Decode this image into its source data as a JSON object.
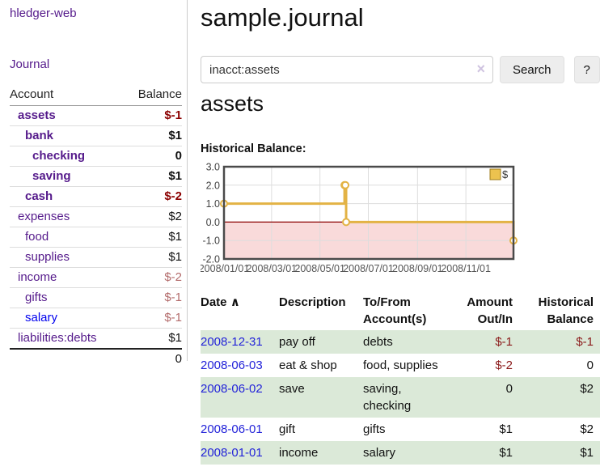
{
  "app": {
    "brand": "hledger-web",
    "nav": {
      "journal": "Journal"
    }
  },
  "sidebar": {
    "columns": {
      "account": "Account",
      "balance": "Balance"
    },
    "accounts": [
      {
        "name": "assets",
        "depth": 1,
        "balance": "$-1"
      },
      {
        "name": "bank",
        "depth": 2,
        "balance": "$1"
      },
      {
        "name": "checking",
        "depth": 3,
        "balance": "0"
      },
      {
        "name": "saving",
        "depth": 3,
        "balance": "$1"
      },
      {
        "name": "cash",
        "depth": 2,
        "balance": "$-2"
      },
      {
        "name": "expenses",
        "depth": 1,
        "balance": "$2"
      },
      {
        "name": "food",
        "depth": 2,
        "balance": "$1"
      },
      {
        "name": "supplies",
        "depth": 2,
        "balance": "$1"
      },
      {
        "name": "income",
        "depth": 1,
        "balance": "$-2"
      },
      {
        "name": "gifts",
        "depth": 2,
        "balance": "$-1"
      },
      {
        "name": "salary",
        "depth": 2,
        "balance": "$-1"
      },
      {
        "name": "liabilities:debts",
        "depth": 1,
        "balance": "$1"
      }
    ],
    "total": "0"
  },
  "main": {
    "title": "sample.journal",
    "search": {
      "value": "inacct:assets",
      "clear_icon": "×",
      "search_button": "Search",
      "help_button": "?"
    },
    "section_title": "assets",
    "chart_label": "Historical Balance:"
  },
  "chart_data": {
    "type": "line",
    "title": "Historical Balance",
    "step": true,
    "series": [
      {
        "name": "$",
        "color": "#e3b345",
        "points": [
          [
            "2008-01-01",
            1
          ],
          [
            "2008-06-01",
            2
          ],
          [
            "2008-06-02",
            2
          ],
          [
            "2008-06-03",
            0
          ],
          [
            "2008-12-31",
            -1
          ]
        ]
      }
    ],
    "x_range": [
      "2008-01-01",
      "2008-12-31"
    ],
    "x_ticks": [
      "2008/01/01",
      "2008/03/01",
      "2008/05/01",
      "2008/07/01",
      "2008/09/01",
      "2008/11/01"
    ],
    "y_ticks": [
      3.0,
      2.0,
      1.0,
      0.0,
      -1.0,
      -2.0
    ],
    "ylim": [
      -2,
      3
    ],
    "grid": true,
    "legend": {
      "label": "$",
      "position": "top-right"
    },
    "colors": {
      "negative_region": "#f9dada",
      "zero_line": "#8b0000",
      "grid": "#dddddd",
      "border": "#4a4a4a",
      "tick_text": "#555555",
      "legend_fill": "#ecc24f",
      "legend_stroke": "#a07d1c"
    }
  },
  "register": {
    "headers": {
      "date": "Date",
      "sort_icon": "∧",
      "description": "Description",
      "accounts": "To/From Account(s)",
      "amount": "Amount Out/In",
      "balance": "Historical Balance"
    },
    "rows": [
      {
        "date": "2008-12-31",
        "description": "pay off",
        "accounts": "debts",
        "amount": "$-1",
        "balance": "$-1"
      },
      {
        "date": "2008-06-03",
        "description": "eat & shop",
        "accounts": "food, supplies",
        "amount": "$-2",
        "balance": "0"
      },
      {
        "date": "2008-06-02",
        "description": "save",
        "accounts": "saving, checking",
        "amount": "0",
        "balance": "$2"
      },
      {
        "date": "2008-06-01",
        "description": "gift",
        "accounts": "gifts",
        "amount": "$1",
        "balance": "$2"
      },
      {
        "date": "2008-01-01",
        "description": "income",
        "accounts": "salary",
        "amount": "$1",
        "balance": "$1"
      }
    ]
  }
}
